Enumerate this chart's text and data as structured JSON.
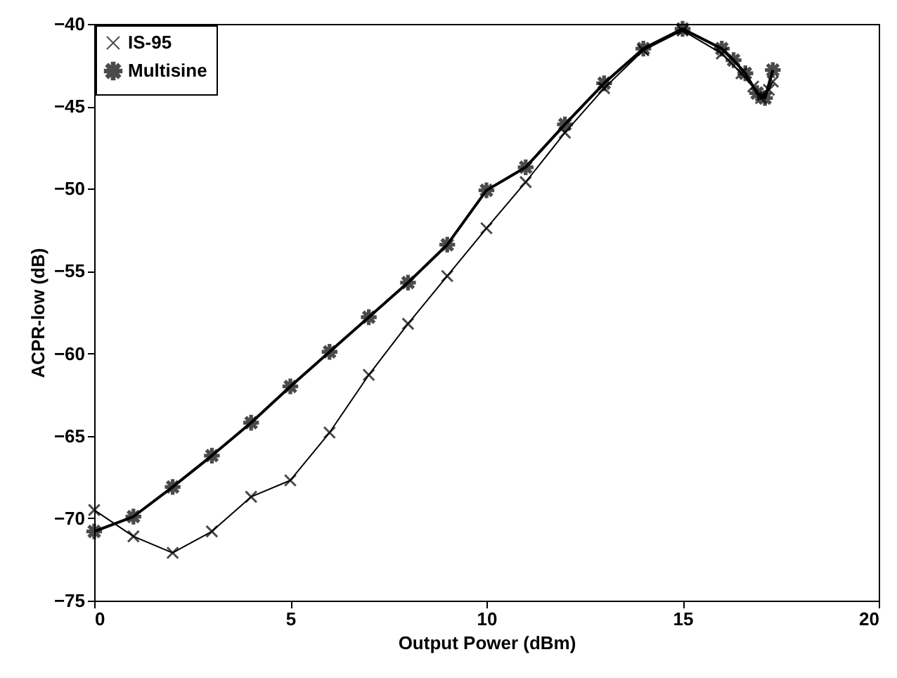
{
  "chart_data": {
    "type": "line",
    "xlabel": "Output Power (dBm)",
    "ylabel": "ACPR-low (dB)",
    "xlim": [
      0,
      20
    ],
    "xticks": [
      0,
      5,
      10,
      15,
      20
    ],
    "ylim": [
      -75,
      -40
    ],
    "yticks": [
      -75,
      -70,
      -65,
      -60,
      -55,
      -50,
      -45,
      -40
    ],
    "grid": false,
    "legend": "top left",
    "line_style": "solid",
    "series": [
      {
        "name": "IS-95",
        "color": "#000000",
        "marker": "cross",
        "x": [
          0,
          1,
          2,
          3,
          4,
          5,
          6,
          7,
          8,
          9,
          10,
          11,
          12,
          13,
          14,
          15,
          16,
          16.5,
          16.8,
          17,
          17.2,
          17.3
        ],
        "values": [
          -69.5,
          -71.1,
          -72.1,
          -70.8,
          -68.7,
          -67.7,
          -64.8,
          -61.3,
          -58.2,
          -55.3,
          -52.4,
          -49.6,
          -46.6,
          -43.9,
          -41.6,
          -40.4,
          -41.8,
          -43.0,
          -43.8,
          -44.5,
          -44.0,
          -43.5
        ]
      },
      {
        "name": "Multisine",
        "color": "#000000",
        "marker": "star",
        "x": [
          0,
          1,
          2,
          3,
          4,
          5,
          6,
          7,
          8,
          9,
          10,
          11,
          12,
          13,
          14,
          15,
          16,
          16.3,
          16.6,
          16.9,
          17.1,
          17.3
        ],
        "values": [
          -70.8,
          -69.9,
          -68.1,
          -66.2,
          -64.2,
          -62.0,
          -59.9,
          -57.8,
          -55.7,
          -53.4,
          -50.1,
          -48.7,
          -46.1,
          -43.6,
          -41.5,
          -40.3,
          -41.5,
          -42.2,
          -43.0,
          -44.2,
          -44.5,
          -42.8
        ]
      }
    ]
  }
}
